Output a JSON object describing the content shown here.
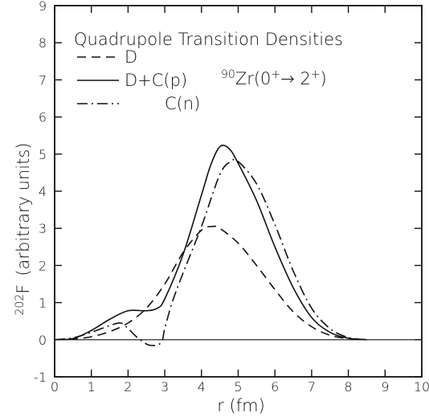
{
  "chart_data": {
    "type": "line",
    "title": "Quadrupole Transition Densities",
    "annotation": {
      "prefix_sup": "90",
      "body": "Zr(0",
      "sup1": "+",
      "arrow": "→ 2",
      "sup2": "+",
      "suffix": ")"
    },
    "xlabel": "r (fm)",
    "ylabel": {
      "sup": "202",
      "main": "F",
      "units": "(arbitrary units)"
    },
    "xlim": [
      0,
      10
    ],
    "ylim": [
      -1,
      9
    ],
    "x_ticks": [
      "0",
      "1",
      "2",
      "3",
      "4",
      "5",
      "6",
      "7",
      "8",
      "9",
      "10"
    ],
    "y_ticks": [
      "-1",
      "0",
      "1",
      "2",
      "3",
      "4",
      "5",
      "6",
      "7",
      "8",
      "9"
    ],
    "grid": false,
    "legend_position": "top-left",
    "series": [
      {
        "name": "D",
        "style": "dashed",
        "x": [
          0,
          0.5,
          1.0,
          1.5,
          2.0,
          2.5,
          3.0,
          3.5,
          4.0,
          4.3,
          4.5,
          5.0,
          5.5,
          6.0,
          6.5,
          7.0,
          7.5,
          8.0,
          8.5
        ],
        "y": [
          0,
          0.02,
          0.08,
          0.22,
          0.45,
          0.85,
          1.5,
          2.35,
          2.95,
          3.05,
          3.0,
          2.6,
          2.0,
          1.35,
          0.75,
          0.35,
          0.12,
          0.03,
          0
        ]
      },
      {
        "name": "D+C(p)",
        "style": "solid",
        "x": [
          0,
          0.5,
          1.0,
          1.5,
          2.0,
          2.5,
          2.8,
          3.0,
          3.5,
          4.0,
          4.25,
          4.5,
          4.75,
          5.0,
          5.5,
          6.0,
          6.5,
          7.0,
          7.5,
          8.0,
          8.5
        ],
        "y": [
          0,
          0.03,
          0.25,
          0.55,
          0.78,
          0.78,
          0.85,
          1.1,
          2.3,
          3.9,
          4.7,
          5.2,
          5.15,
          4.75,
          3.75,
          2.5,
          1.4,
          0.6,
          0.2,
          0.04,
          0
        ]
      },
      {
        "name": "C(n)",
        "style": "dashdot",
        "x": [
          0,
          0.5,
          1.0,
          1.5,
          1.8,
          2.0,
          2.3,
          2.6,
          2.9,
          3.0,
          3.2,
          3.5,
          4.0,
          4.5,
          4.8,
          5.0,
          5.5,
          6.0,
          6.5,
          7.0,
          7.5,
          8.0,
          8.5
        ],
        "y": [
          0,
          0.05,
          0.2,
          0.38,
          0.45,
          0.3,
          0.02,
          -0.15,
          -0.08,
          0.3,
          1.0,
          1.8,
          3.05,
          4.45,
          4.8,
          4.8,
          4.2,
          3.1,
          1.85,
          0.85,
          0.3,
          0.06,
          0
        ]
      }
    ]
  }
}
